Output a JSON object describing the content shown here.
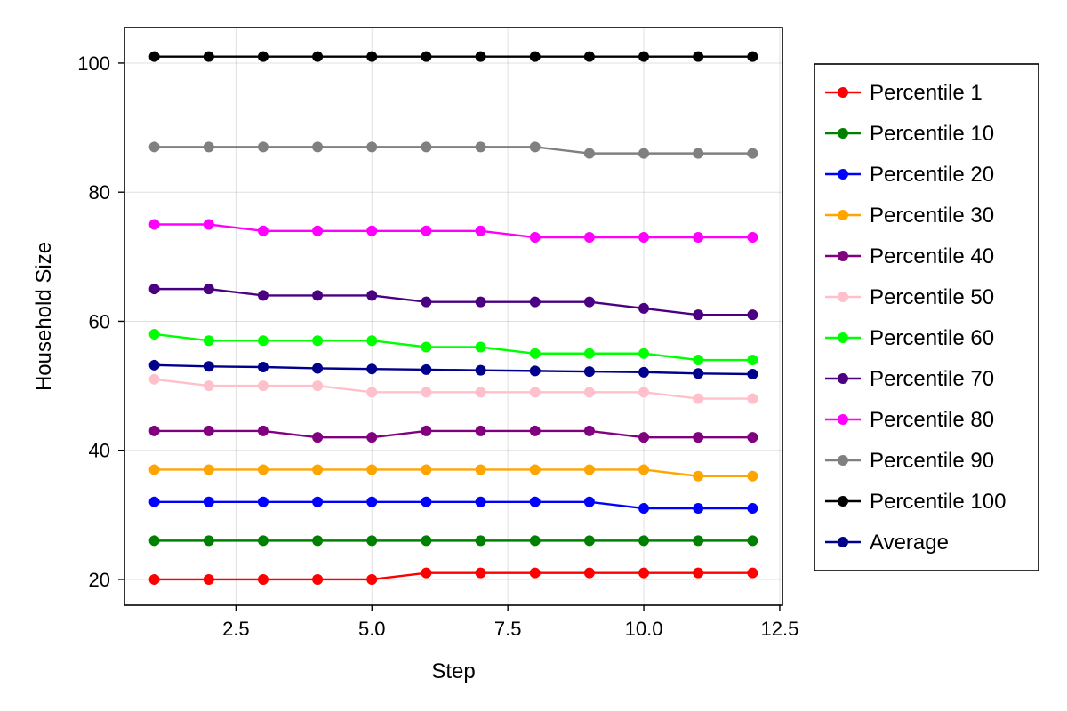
{
  "chart_data": {
    "type": "line",
    "title": "",
    "xlabel": "Step",
    "ylabel": "Household Size",
    "xlim": [
      0.45,
      12.55
    ],
    "ylim": [
      16,
      105.5
    ],
    "xticks": [
      2.5,
      5.0,
      7.5,
      10.0,
      12.5
    ],
    "xtick_labels": [
      "2.5",
      "5.0",
      "7.5",
      "10.0",
      "12.5"
    ],
    "yticks": [
      20,
      40,
      60,
      80,
      100
    ],
    "ytick_labels": [
      "20",
      "40",
      "60",
      "80",
      "100"
    ],
    "grid": true,
    "legend_position": "right",
    "x": [
      1,
      2,
      3,
      4,
      5,
      6,
      7,
      8,
      9,
      10,
      11,
      12
    ],
    "series": [
      {
        "name": "Percentile 1",
        "color": "#ff0000",
        "values": [
          20,
          20,
          20,
          20,
          20,
          21,
          21,
          21,
          21,
          21,
          21,
          21
        ]
      },
      {
        "name": "Percentile 10",
        "color": "#008000",
        "values": [
          26,
          26,
          26,
          26,
          26,
          26,
          26,
          26,
          26,
          26,
          26,
          26
        ]
      },
      {
        "name": "Percentile 20",
        "color": "#0000ff",
        "values": [
          32,
          32,
          32,
          32,
          32,
          32,
          32,
          32,
          32,
          31,
          31,
          31
        ]
      },
      {
        "name": "Percentile 30",
        "color": "#ffa500",
        "values": [
          37,
          37,
          37,
          37,
          37,
          37,
          37,
          37,
          37,
          37,
          36,
          36
        ]
      },
      {
        "name": "Percentile 40",
        "color": "#800080",
        "values": [
          43,
          43,
          43,
          42,
          42,
          43,
          43,
          43,
          43,
          42,
          42,
          42
        ]
      },
      {
        "name": "Percentile 50",
        "color": "#ffc0cb",
        "values": [
          51,
          50,
          50,
          50,
          49,
          49,
          49,
          49,
          49,
          49,
          48,
          48
        ]
      },
      {
        "name": "Percentile 60",
        "color": "#00ff00",
        "values": [
          58,
          57,
          57,
          57,
          57,
          56,
          56,
          55,
          55,
          55,
          54,
          54
        ]
      },
      {
        "name": "Percentile 70",
        "color": "#4b0082",
        "values": [
          65,
          65,
          64,
          64,
          64,
          63,
          63,
          63,
          63,
          62,
          61,
          61
        ]
      },
      {
        "name": "Percentile 80",
        "color": "#ff00ff",
        "values": [
          75,
          75,
          74,
          74,
          74,
          74,
          74,
          73,
          73,
          73,
          73,
          73
        ]
      },
      {
        "name": "Percentile 90",
        "color": "#808080",
        "values": [
          87,
          87,
          87,
          87,
          87,
          87,
          87,
          87,
          86,
          86,
          86,
          86
        ]
      },
      {
        "name": "Percentile 100",
        "color": "#000000",
        "values": [
          101,
          101,
          101,
          101,
          101,
          101,
          101,
          101,
          101,
          101,
          101,
          101
        ]
      },
      {
        "name": "Average",
        "color": "#00008b",
        "values": [
          53.2,
          53.0,
          52.9,
          52.7,
          52.6,
          52.5,
          52.4,
          52.3,
          52.2,
          52.1,
          51.9,
          51.8
        ]
      }
    ]
  }
}
